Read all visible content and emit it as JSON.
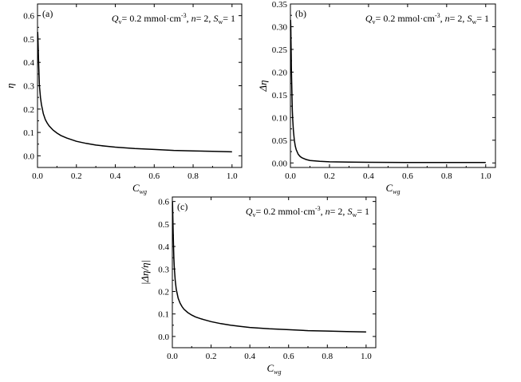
{
  "chart_data": [
    {
      "type": "line",
      "panel": "(a)",
      "annotation": {
        "Q_label": "Q",
        "Q_sub": "v",
        "Q_value": "= 0.2 mmol·cm",
        "Q_exp": "-3",
        "n_text": ", n= 2, ",
        "S_label": "S",
        "S_sub": "w",
        "S_value": "= 1"
      },
      "xlabel": "C",
      "xlabel_sub": "wg",
      "ylabel": "η",
      "xlim": [
        0,
        1.05
      ],
      "ylim": [
        -0.05,
        0.65
      ],
      "xticks": [
        0,
        0.2,
        0.4,
        0.6,
        0.8,
        1.0
      ],
      "xtick_labels": [
        "0.0",
        "0.2",
        "0.4",
        "0.6",
        "0.8",
        "1.0"
      ],
      "yticks": [
        0,
        0.1,
        0.2,
        0.3,
        0.4,
        0.5,
        0.6
      ],
      "ytick_labels": [
        "0.0",
        "0.1",
        "0.2",
        "0.3",
        "0.4",
        "0.5",
        "0.6"
      ],
      "series": [
        {
          "x": [
            0.001,
            0.002,
            0.004,
            0.006,
            0.008,
            0.01,
            0.015,
            0.02,
            0.03,
            0.04,
            0.05,
            0.06,
            0.08,
            0.1,
            0.12,
            0.15,
            0.2,
            0.25,
            0.3,
            0.35,
            0.4,
            0.5,
            0.6,
            0.7,
            0.8,
            0.9,
            1.0
          ],
          "y": [
            0.53,
            0.51,
            0.45,
            0.39,
            0.34,
            0.3,
            0.25,
            0.22,
            0.18,
            0.155,
            0.14,
            0.128,
            0.11,
            0.097,
            0.087,
            0.076,
            0.062,
            0.053,
            0.046,
            0.041,
            0.037,
            0.031,
            0.027,
            0.023,
            0.021,
            0.019,
            0.017
          ]
        }
      ]
    },
    {
      "type": "line",
      "panel": "(b)",
      "annotation": {
        "Q_label": "Q",
        "Q_sub": "v",
        "Q_value": "= 0.2 mmol·cm",
        "Q_exp": "-3",
        "n_text": ", n= 2, ",
        "S_label": "S",
        "S_sub": "w",
        "S_value": "= 1"
      },
      "xlabel": "C",
      "xlabel_sub": "wg",
      "ylabel": "Δη",
      "xlim": [
        0,
        1.05
      ],
      "ylim": [
        -0.01,
        0.35
      ],
      "xticks": [
        0,
        0.2,
        0.4,
        0.6,
        0.8,
        1.0
      ],
      "xtick_labels": [
        "0.0",
        "0.2",
        "0.4",
        "0.6",
        "0.8",
        "1.0"
      ],
      "yticks": [
        0,
        0.05,
        0.1,
        0.15,
        0.2,
        0.25,
        0.3,
        0.35
      ],
      "ytick_labels": [
        "0.00",
        "0.05",
        "0.10",
        "0.15",
        "0.20",
        "0.25",
        "0.30",
        "0.35"
      ],
      "series": [
        {
          "x": [
            0.001,
            0.002,
            0.003,
            0.004,
            0.005,
            0.006,
            0.008,
            0.01,
            0.012,
            0.015,
            0.02,
            0.025,
            0.03,
            0.04,
            0.05,
            0.06,
            0.08,
            0.1,
            0.15,
            0.2,
            0.3,
            0.4,
            0.5,
            0.6,
            0.8,
            1.0
          ],
          "y": [
            0.315,
            0.3,
            0.27,
            0.24,
            0.21,
            0.185,
            0.145,
            0.115,
            0.095,
            0.072,
            0.05,
            0.037,
            0.029,
            0.019,
            0.014,
            0.011,
            0.0075,
            0.0055,
            0.0035,
            0.0025,
            0.0018,
            0.0014,
            0.0012,
            0.001,
            0.0009,
            0.0008
          ]
        }
      ]
    },
    {
      "type": "line",
      "panel": "(c)",
      "annotation": {
        "Q_label": "Q",
        "Q_sub": "v",
        "Q_value": "= 0.2 mmol·cm",
        "Q_exp": "-3",
        "n_text": ", n= 2, ",
        "S_label": "S",
        "S_sub": "w",
        "S_value": "= 1"
      },
      "xlabel": "C",
      "xlabel_sub": "wg",
      "ylabel": "|Δη/η|",
      "xlim": [
        0,
        1.05
      ],
      "ylim": [
        -0.05,
        0.62
      ],
      "xticks": [
        0,
        0.2,
        0.4,
        0.6,
        0.8,
        1.0
      ],
      "xtick_labels": [
        "0.0",
        "0.2",
        "0.4",
        "0.6",
        "0.8",
        "1.0"
      ],
      "yticks": [
        0,
        0.1,
        0.2,
        0.3,
        0.4,
        0.5,
        0.6
      ],
      "ytick_labels": [
        "0.0",
        "0.1",
        "0.2",
        "0.3",
        "0.4",
        "0.5",
        "0.6"
      ],
      "series": [
        {
          "x": [
            0.001,
            0.002,
            0.004,
            0.006,
            0.008,
            0.01,
            0.015,
            0.02,
            0.03,
            0.04,
            0.05,
            0.06,
            0.08,
            0.1,
            0.12,
            0.15,
            0.2,
            0.25,
            0.3,
            0.35,
            0.4,
            0.5,
            0.6,
            0.7,
            0.8,
            0.9,
            1.0
          ],
          "y": [
            0.6,
            0.55,
            0.47,
            0.4,
            0.35,
            0.31,
            0.25,
            0.21,
            0.17,
            0.148,
            0.133,
            0.121,
            0.106,
            0.095,
            0.087,
            0.078,
            0.066,
            0.057,
            0.05,
            0.045,
            0.04,
            0.034,
            0.03,
            0.026,
            0.024,
            0.022,
            0.02
          ]
        }
      ]
    }
  ]
}
